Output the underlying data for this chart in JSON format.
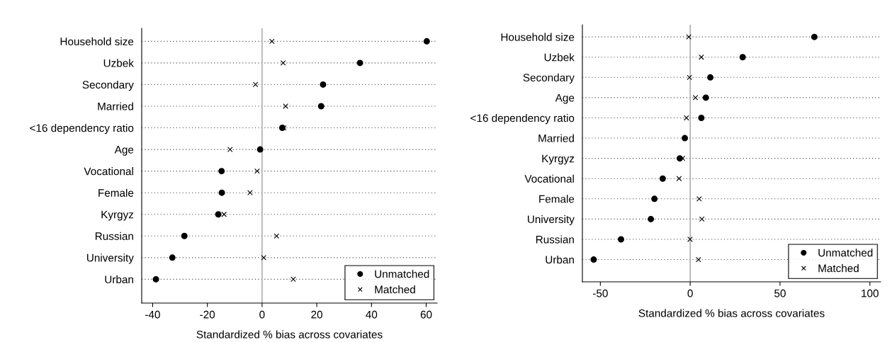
{
  "chart_data": [
    {
      "type": "scatter",
      "orientation": "horizontal",
      "xlabel": "Standardized % bias across covariates",
      "categories": [
        "Household size",
        "Uzbek",
        "Secondary",
        "Married",
        "<16 dependency ratio",
        "Age",
        "Vocational",
        "Female",
        "Kyrgyz",
        "Russian",
        "University",
        "Urban"
      ],
      "series": [
        {
          "name": "Unmatched",
          "color": "#000000",
          "marker": "circle",
          "values": [
            60.2,
            35.8,
            22.3,
            21.6,
            7.4,
            -0.7,
            -14.8,
            -14.7,
            -16.0,
            -28.4,
            -32.8,
            -38.8
          ]
        },
        {
          "name": "Matched",
          "color": "#000000",
          "marker": "cross",
          "values": [
            3.6,
            7.7,
            -2.4,
            8.6,
            8.0,
            -11.7,
            -1.8,
            -4.4,
            -13.9,
            5.3,
            0.6,
            11.4
          ]
        }
      ],
      "xlim": [
        -44,
        64
      ],
      "xticks": [
        -40,
        -20,
        0,
        20,
        40,
        60
      ],
      "grid": "y",
      "legend": "bottom right",
      "ref_lines": [
        {
          "axis": "x",
          "value": 0,
          "color": "#a0a0a0"
        }
      ]
    },
    {
      "type": "scatter",
      "orientation": "horizontal",
      "xlabel": "Standardized % bias across covariates",
      "categories": [
        "Household size",
        "Uzbek",
        "Secondary",
        "Age",
        "<16 dependency ratio",
        "Married",
        "Kyrgyz",
        "Vocational",
        "Female",
        "University",
        "Russian",
        "Urban"
      ],
      "series": [
        {
          "name": "Unmatched",
          "color": "#000000",
          "marker": "circle",
          "values": [
            69.1,
            29.2,
            11.2,
            8.7,
            6.2,
            -3.0,
            -5.8,
            -15.3,
            -19.9,
            -21.9,
            -38.5,
            -53.7
          ]
        },
        {
          "name": "Matched",
          "color": "#000000",
          "marker": "cross",
          "values": [
            -0.8,
            6.2,
            -0.4,
            2.9,
            -2.1,
            null,
            -4.2,
            -6.2,
            5.0,
            6.5,
            -0.1,
            4.6
          ]
        }
      ],
      "xlim": [
        -60,
        106
      ],
      "xticks": [
        -50,
        0,
        50,
        100
      ],
      "grid": "y",
      "legend": "bottom right",
      "ref_lines": [
        {
          "axis": "x",
          "value": 0,
          "color": "#a0a0a0"
        }
      ]
    }
  ]
}
